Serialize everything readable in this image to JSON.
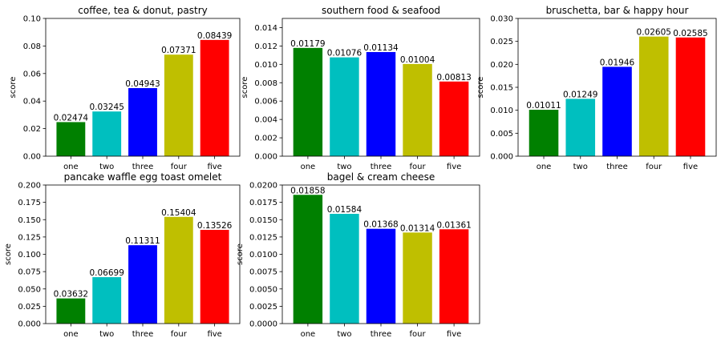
{
  "chart_data": [
    {
      "type": "bar",
      "title": "coffee, tea & donut, pastry",
      "xlabel": "",
      "ylabel": "score",
      "categories": [
        "one",
        "two",
        "three",
        "four",
        "five"
      ],
      "values": [
        0.02474,
        0.03245,
        0.04943,
        0.07371,
        0.08439
      ],
      "value_labels": [
        "0.02474",
        "0.03245",
        "0.04943",
        "0.07371",
        "0.08439"
      ],
      "colors": [
        "#008000",
        "#00bfbf",
        "#0000ff",
        "#bfbf00",
        "#ff0000"
      ],
      "ylim": [
        0,
        0.1
      ],
      "yticks": [
        0,
        0.02,
        0.04,
        0.06,
        0.08,
        0.1
      ],
      "ytick_labels": [
        "0.00",
        "0.02",
        "0.04",
        "0.06",
        "0.08",
        "0.10"
      ],
      "grid": false
    },
    {
      "type": "bar",
      "title": "southern food & seafood",
      "xlabel": "",
      "ylabel": "score",
      "categories": [
        "one",
        "two",
        "three",
        "four",
        "five"
      ],
      "values": [
        0.01179,
        0.01076,
        0.01134,
        0.01004,
        0.00813
      ],
      "value_labels": [
        "0.01179",
        "0.01076",
        "0.01134",
        "0.01004",
        "0.00813"
      ],
      "colors": [
        "#008000",
        "#00bfbf",
        "#0000ff",
        "#bfbf00",
        "#ff0000"
      ],
      "ylim": [
        0,
        0.015
      ],
      "yticks": [
        0,
        0.002,
        0.004,
        0.006,
        0.008,
        0.01,
        0.012,
        0.014
      ],
      "ytick_labels": [
        "0.000",
        "0.002",
        "0.004",
        "0.006",
        "0.008",
        "0.010",
        "0.012",
        "0.014"
      ],
      "grid": false
    },
    {
      "type": "bar",
      "title": "bruschetta, bar & happy hour",
      "xlabel": "",
      "ylabel": "score",
      "categories": [
        "one",
        "two",
        "three",
        "four",
        "five"
      ],
      "values": [
        0.01011,
        0.01249,
        0.01946,
        0.02605,
        0.02585
      ],
      "value_labels": [
        "0.01011",
        "0.01249",
        "0.01946",
        "0.02605",
        "0.02585"
      ],
      "colors": [
        "#008000",
        "#00bfbf",
        "#0000ff",
        "#bfbf00",
        "#ff0000"
      ],
      "ylim": [
        0,
        0.03
      ],
      "yticks": [
        0,
        0.005,
        0.01,
        0.015,
        0.02,
        0.025,
        0.03
      ],
      "ytick_labels": [
        "0.000",
        "0.005",
        "0.010",
        "0.015",
        "0.020",
        "0.025",
        "0.030"
      ],
      "grid": false
    },
    {
      "type": "bar",
      "title": "pancake waffle egg toast omelet",
      "xlabel": "",
      "ylabel": "score",
      "categories": [
        "one",
        "two",
        "three",
        "four",
        "five"
      ],
      "values": [
        0.03632,
        0.06699,
        0.11311,
        0.15404,
        0.13526
      ],
      "value_labels": [
        "0.03632",
        "0.06699",
        "0.11311",
        "0.15404",
        "0.13526"
      ],
      "colors": [
        "#008000",
        "#00bfbf",
        "#0000ff",
        "#bfbf00",
        "#ff0000"
      ],
      "ylim": [
        0,
        0.2
      ],
      "yticks": [
        0,
        0.025,
        0.05,
        0.075,
        0.1,
        0.125,
        0.15,
        0.175,
        0.2
      ],
      "ytick_labels": [
        "0.000",
        "0.025",
        "0.050",
        "0.075",
        "0.100",
        "0.125",
        "0.150",
        "0.175",
        "0.200"
      ],
      "grid": false
    },
    {
      "type": "bar",
      "title": "bagel & cream cheese",
      "xlabel": "",
      "ylabel": "score",
      "categories": [
        "one",
        "two",
        "three",
        "four",
        "five"
      ],
      "values": [
        0.01858,
        0.01584,
        0.01368,
        0.01314,
        0.01361
      ],
      "value_labels": [
        "0.01858",
        "0.01584",
        "0.01368",
        "0.01314",
        "0.01361"
      ],
      "colors": [
        "#008000",
        "#00bfbf",
        "#0000ff",
        "#bfbf00",
        "#ff0000"
      ],
      "ylim": [
        0,
        0.02
      ],
      "yticks": [
        0,
        0.0025,
        0.005,
        0.0075,
        0.01,
        0.0125,
        0.015,
        0.0175,
        0.02
      ],
      "ytick_labels": [
        "0.0000",
        "0.0025",
        "0.0050",
        "0.0075",
        "0.0100",
        "0.0125",
        "0.0150",
        "0.0175",
        "0.0200"
      ],
      "grid": false
    }
  ]
}
